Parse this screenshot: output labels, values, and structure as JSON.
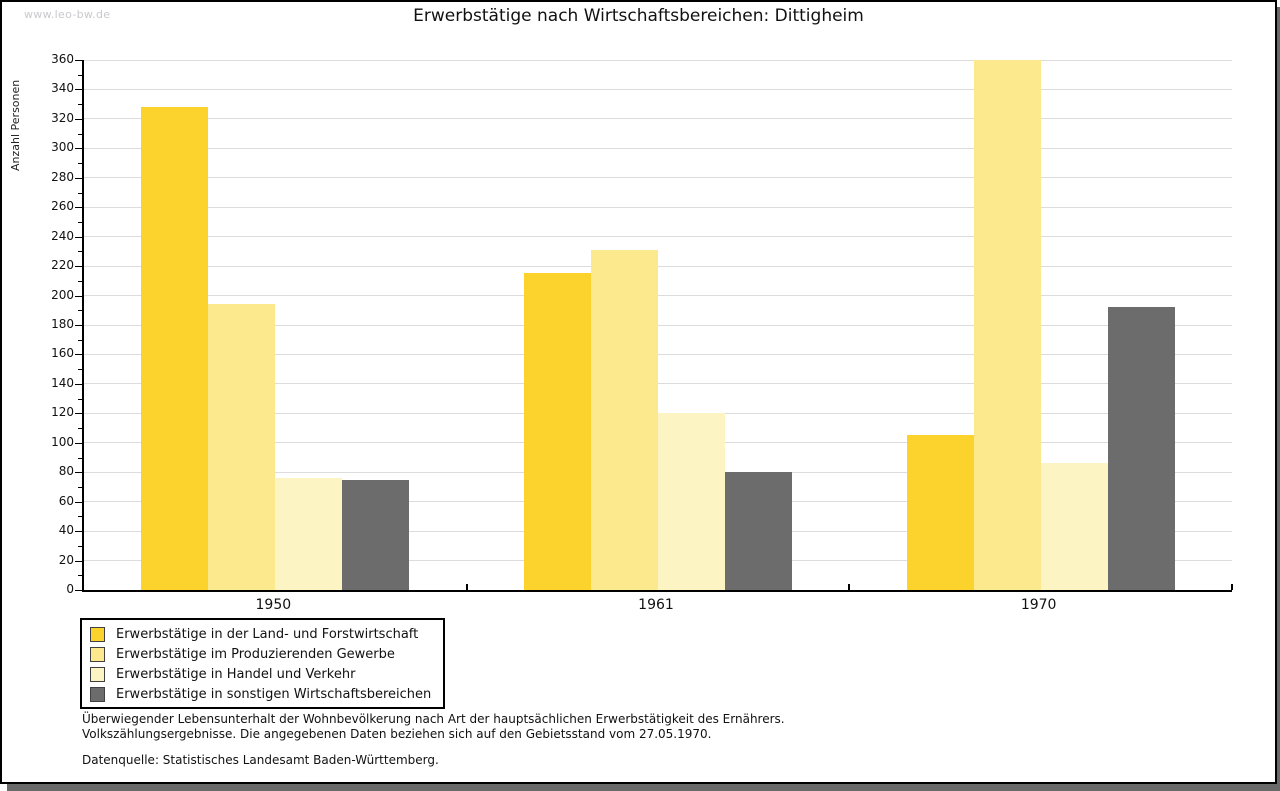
{
  "watermark": "www.leo-bw.de",
  "chart_data": {
    "type": "bar",
    "title": "Erwerbstätige nach Wirtschaftsbereichen: Dittigheim",
    "ylabel": "Anzahl Personen",
    "xlabel": "",
    "categories": [
      "1950",
      "1961",
      "1970"
    ],
    "series": [
      {
        "name": "Erwerbstätige in der Land- und Forstwirtschaft",
        "color": "#FBD32C",
        "values": [
          328,
          215,
          105
        ]
      },
      {
        "name": "Erwerbstätige im Produzierenden Gewerbe",
        "color": "#FCE98D",
        "values": [
          194,
          231,
          360
        ]
      },
      {
        "name": "Erwerbstätige in Handel und Verkehr",
        "color": "#FCF4C3",
        "values": [
          76,
          120,
          86
        ]
      },
      {
        "name": "Erwerbstätige in sonstigen Wirtschaftsbereichen",
        "color": "#6C6C6C",
        "values": [
          75,
          80,
          192
        ]
      }
    ],
    "ylim": [
      0,
      360
    ],
    "ytick_step": 20,
    "yminor_step": 10,
    "grid": "horizontal-major",
    "gridline_color": "#DCDCDC",
    "legend_position": "bottom-left"
  },
  "footnote": {
    "line1": "Überwiegender Lebensunterhalt der Wohnbevölkerung nach Art der hauptsächlichen Erwerbstätigkeit des Ernährers.",
    "line2": "Volkszählungsergebnisse. Die angegebenen Daten beziehen sich auf den Gebietsstand vom 27.05.1970.",
    "source": "Datenquelle: Statistisches Landesamt Baden-Württemberg."
  }
}
